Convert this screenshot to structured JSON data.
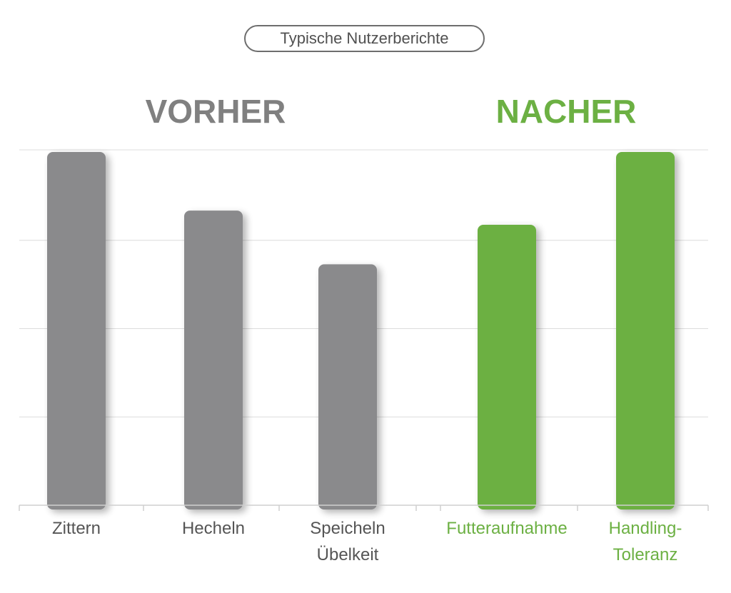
{
  "header": {
    "pill_label": "Typische Nutzerberichte"
  },
  "groups": [
    {
      "title": "VORHER",
      "color": "#808080"
    },
    {
      "title": "NACHER",
      "color": "#6cb043"
    }
  ],
  "chart_data": {
    "type": "bar",
    "categories": [
      "Zittern",
      "Hecheln",
      "Speicheln Übelkeit",
      "Futteraufnahme",
      "Handling-Toleranz"
    ],
    "category_lines": [
      [
        "Zittern"
      ],
      [
        "Hecheln"
      ],
      [
        "Speicheln",
        "Übelkeit"
      ],
      [
        "Futteraufnahme"
      ],
      [
        "Handling-",
        "Toleranz"
      ]
    ],
    "values": [
      100,
      83.4,
      68.2,
      79.4,
      100
    ],
    "group_of_bar": [
      0,
      0,
      0,
      1,
      1
    ],
    "bar_colors": [
      "#8a8a8c",
      "#8a8a8c",
      "#8a8a8c",
      "#6cb043",
      "#6cb043"
    ],
    "label_colors": [
      "#555555",
      "#555555",
      "#555555",
      "#6cb043",
      "#6cb043"
    ],
    "ylim": [
      0,
      100
    ],
    "grid": true,
    "xlabel": "",
    "ylabel": ""
  }
}
